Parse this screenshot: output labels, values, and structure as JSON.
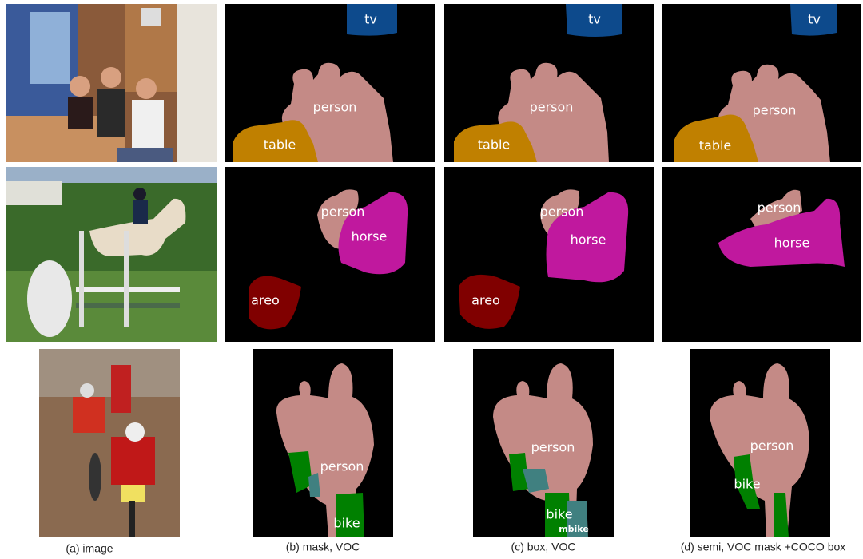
{
  "captions": [
    "(a) image",
    "(b) mask, VOC",
    "(c) box, VOC",
    "(d) semi, VOC mask +COCO box"
  ],
  "rows": [
    {
      "panels": [
        [
          "tv",
          "person",
          "table"
        ],
        [
          "tv",
          "person",
          "table"
        ],
        [
          "tv",
          "person",
          "table"
        ]
      ]
    },
    {
      "panels": [
        [
          "person",
          "horse",
          "areo"
        ],
        [
          "person",
          "horse",
          "areo"
        ],
        [
          "person",
          "horse"
        ]
      ]
    },
    {
      "panels": [
        [
          "person",
          "bike"
        ],
        [
          "person",
          "bike",
          "mbike"
        ],
        [
          "person",
          "bike"
        ]
      ]
    }
  ]
}
